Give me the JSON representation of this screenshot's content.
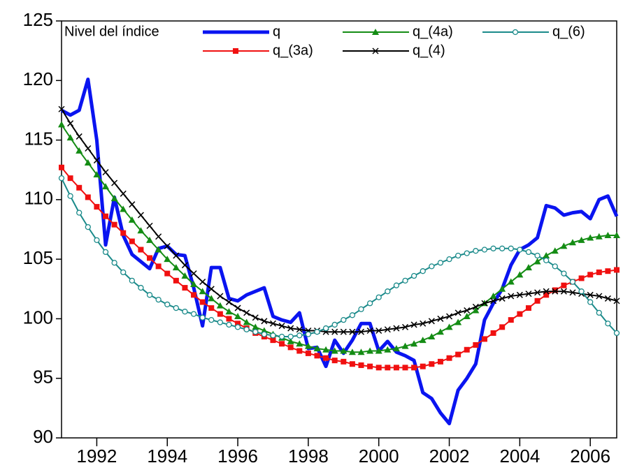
{
  "chart_data": {
    "type": "line",
    "title": "Nivel del índice",
    "x": [
      1991,
      1991.25,
      1991.5,
      1991.75,
      1992,
      1992.25,
      1992.5,
      1992.75,
      1993,
      1993.25,
      1993.5,
      1993.75,
      1994,
      1994.25,
      1994.5,
      1994.75,
      1995,
      1995.25,
      1995.5,
      1995.75,
      1996,
      1996.25,
      1996.5,
      1996.75,
      1997,
      1997.25,
      1997.5,
      1997.75,
      1998,
      1998.25,
      1998.5,
      1998.75,
      1999,
      1999.25,
      1999.5,
      1999.75,
      2000,
      2000.25,
      2000.5,
      2000.75,
      2001,
      2001.25,
      2001.5,
      2001.75,
      2002,
      2002.25,
      2002.5,
      2002.75,
      2003,
      2003.25,
      2003.5,
      2003.75,
      2004,
      2004.25,
      2004.5,
      2004.75,
      2005,
      2005.25,
      2005.5,
      2005.75,
      2006,
      2006.25,
      2006.5,
      2006.75
    ],
    "xlim": [
      1991,
      2006.75
    ],
    "xticks": [
      1992,
      1994,
      1996,
      1998,
      2000,
      2002,
      2004,
      2006
    ],
    "ylim": [
      90,
      125
    ],
    "yticks": [
      90,
      95,
      100,
      105,
      110,
      115,
      120,
      125
    ],
    "legend": "top",
    "series": [
      {
        "name": "q",
        "color": "#0a14f0",
        "width": 5,
        "marker": "none",
        "values": [
          117.5,
          117.1,
          117.5,
          120.1,
          115,
          106.2,
          110.2,
          107,
          105.4,
          104.8,
          104.2,
          105.9,
          106.1,
          105.4,
          105.3,
          102.6,
          99.4,
          104.3,
          104.3,
          101.7,
          101.5,
          102,
          102.3,
          102.6,
          100.2,
          99.9,
          99.7,
          100.5,
          97.5,
          97.6,
          96,
          98.2,
          97.1,
          98.2,
          99.6,
          99.6,
          97.3,
          98.1,
          97.2,
          96.9,
          96.5,
          93.8,
          93.3,
          92.1,
          91.2,
          94,
          95,
          96.2,
          99.9,
          101.3,
          102.5,
          104.5,
          105.8,
          106.2,
          106.8,
          109.5,
          109.3,
          108.7,
          108.9,
          109,
          108.4,
          110,
          110.3,
          108.6
        ]
      },
      {
        "name": "q_(3a)",
        "color": "#f01010",
        "width": 2,
        "marker": "square",
        "values": [
          112.7,
          111.8,
          111.0,
          110.2,
          109.4,
          108.6,
          107.9,
          107.2,
          106.5,
          105.8,
          105.1,
          104.4,
          103.8,
          103.2,
          102.6,
          102.0,
          101.4,
          100.9,
          100.4,
          100.0,
          99.6,
          99.2,
          98.8,
          98.5,
          98.2,
          97.9,
          97.6,
          97.3,
          97.1,
          96.9,
          96.7,
          96.5,
          96.4,
          96.2,
          96.1,
          96.0,
          95.9,
          95.9,
          95.9,
          95.9,
          95.9,
          96.0,
          96.2,
          96.4,
          96.7,
          97.0,
          97.4,
          97.8,
          98.3,
          98.8,
          99.3,
          99.9,
          100.4,
          100.9,
          101.5,
          102.0,
          102.4,
          102.8,
          103.1,
          103.4,
          103.7,
          103.9,
          104.0,
          104.1
        ]
      },
      {
        "name": "q_(4a)",
        "color": "#148c14",
        "width": 2,
        "marker": "triangle",
        "values": [
          116.3,
          115.2,
          114.1,
          113.1,
          112.1,
          111.1,
          110.1,
          109.2,
          108.3,
          107.4,
          106.6,
          105.8,
          105.0,
          104.3,
          103.6,
          102.9,
          102.3,
          101.7,
          101.1,
          100.6,
          100.2,
          99.7,
          99.3,
          99.0,
          98.7,
          98.4,
          98.1,
          97.9,
          97.7,
          97.5,
          97.4,
          97.3,
          97.3,
          97.2,
          97.2,
          97.3,
          97.3,
          97.4,
          97.5,
          97.7,
          97.9,
          98.2,
          98.5,
          98.9,
          99.3,
          99.7,
          100.2,
          100.7,
          101.3,
          101.9,
          102.5,
          103.1,
          103.7,
          104.3,
          104.8,
          105.3,
          105.7,
          106.1,
          106.4,
          106.6,
          106.8,
          106.9,
          107.0,
          107.0
        ]
      },
      {
        "name": "q_(4)",
        "color": "#000000",
        "width": 2,
        "marker": "x",
        "values": [
          117.6,
          116.4,
          115.3,
          114.3,
          113.3,
          112.3,
          111.4,
          110.5,
          109.6,
          108.7,
          107.8,
          106.9,
          106.1,
          105.3,
          104.5,
          103.8,
          103.1,
          102.5,
          101.9,
          101.4,
          100.9,
          100.5,
          100.1,
          99.8,
          99.6,
          99.4,
          99.2,
          99.1,
          99.0,
          99.0,
          98.9,
          98.9,
          98.9,
          98.9,
          98.9,
          99.0,
          99.0,
          99.1,
          99.2,
          99.3,
          99.5,
          99.6,
          99.8,
          100.0,
          100.2,
          100.5,
          100.7,
          101.0,
          101.3,
          101.5,
          101.7,
          101.9,
          102.0,
          102.1,
          102.2,
          102.3,
          102.3,
          102.3,
          102.2,
          102.1,
          102.0,
          101.9,
          101.7,
          101.5
        ]
      },
      {
        "name": "q_(6)",
        "color": "#1a8a8a",
        "width": 2,
        "marker": "circle",
        "values": [
          111.8,
          110.3,
          108.9,
          107.7,
          106.6,
          105.6,
          104.7,
          103.9,
          103.2,
          102.6,
          102.0,
          101.6,
          101.2,
          100.9,
          100.6,
          100.4,
          100.1,
          99.9,
          99.7,
          99.5,
          99.3,
          99.1,
          98.9,
          98.7,
          98.6,
          98.5,
          98.5,
          98.6,
          98.7,
          98.9,
          99.2,
          99.5,
          99.9,
          100.3,
          100.8,
          101.3,
          101.8,
          102.3,
          102.8,
          103.2,
          103.6,
          104.0,
          104.4,
          104.7,
          105.0,
          105.3,
          105.5,
          105.7,
          105.8,
          105.9,
          105.9,
          105.9,
          105.8,
          105.6,
          105.3,
          104.9,
          104.4,
          103.8,
          103.1,
          102.3,
          101.4,
          100.5,
          99.6,
          98.8
        ]
      }
    ]
  }
}
